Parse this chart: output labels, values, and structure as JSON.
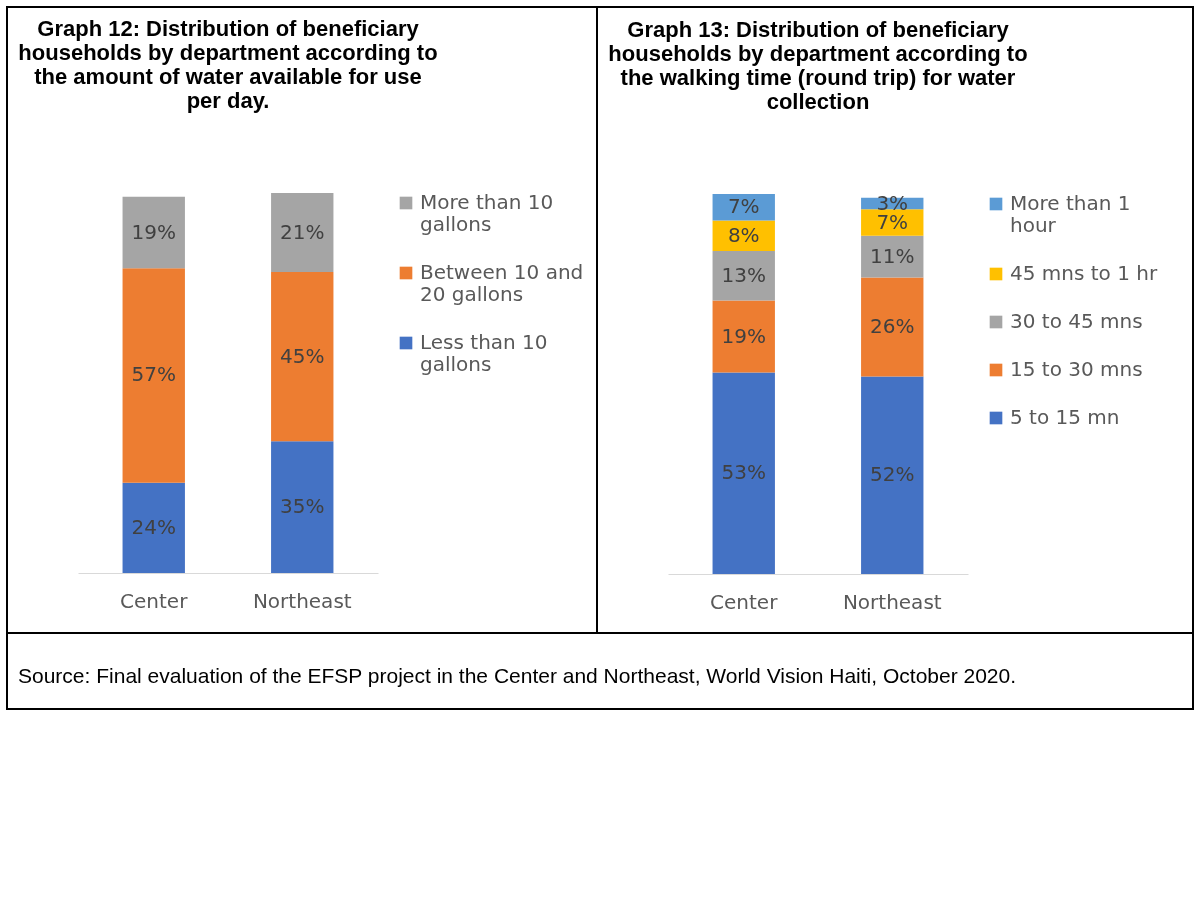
{
  "chart_data": [
    {
      "type": "bar",
      "title": "Graph 12: Distribution of beneficiary households by department according to the amount of water available for use per day.",
      "categories": [
        "Center",
        "Northeast"
      ],
      "stacked": true,
      "legend": "right",
      "grid": false,
      "series": [
        {
          "name": "Less than 10 gallons",
          "color": "#4472c4",
          "values": [
            24,
            35
          ],
          "value_labels": [
            "24%",
            "35%"
          ]
        },
        {
          "name": "Between 10 and 20 gallons",
          "color": "#ed7d31",
          "values": [
            57,
            45
          ],
          "value_labels": [
            "57%",
            "45%"
          ]
        },
        {
          "name": "More than 10 gallons",
          "color": "#a5a5a5",
          "values": [
            19,
            21
          ],
          "value_labels": [
            "19%",
            "21%"
          ]
        }
      ]
    },
    {
      "type": "bar",
      "title": "Graph 13: Distribution of beneficiary households by department according to the walking time (round trip) for water collection",
      "categories": [
        "Center",
        "Northeast"
      ],
      "stacked": true,
      "legend": "right",
      "grid": false,
      "annotations": [
        "Source: Final evaluation of the EFSP project in the Center and Northeast, World Vision Haiti, October 2020."
      ],
      "series": [
        {
          "name": "5 to 15 mn",
          "color": "#4472c4",
          "values": [
            53,
            52
          ],
          "value_labels": [
            "53%",
            "52%"
          ]
        },
        {
          "name": "15 to 30 mns",
          "color": "#ed7d31",
          "values": [
            19,
            26
          ],
          "value_labels": [
            "19%",
            "26%"
          ]
        },
        {
          "name": "30 to 45 mns",
          "color": "#a5a5a5",
          "values": [
            13,
            11
          ],
          "value_labels": [
            "13%",
            "11%"
          ]
        },
        {
          "name": "45 mns to 1 hr",
          "color": "#ffc000",
          "values": [
            8,
            7
          ],
          "value_labels": [
            "8%",
            "7%"
          ]
        },
        {
          "name": "More than 1 hour",
          "color": "#5b9bd5",
          "values": [
            7,
            3
          ],
          "value_labels": [
            "7%",
            "3%"
          ]
        }
      ]
    }
  ]
}
